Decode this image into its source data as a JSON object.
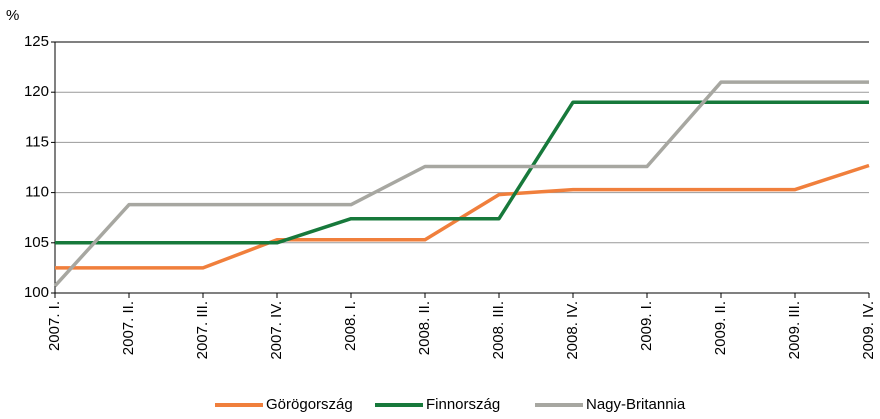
{
  "chart_data": {
    "type": "line",
    "y_label": "%",
    "categories": [
      "2007. I.",
      "2007. II.",
      "2007. III.",
      "2007. IV.",
      "2008. I.",
      "2008. II.",
      "2008. III.",
      "2008. IV.",
      "2009. I.",
      "2009. II.",
      "2009. III.",
      "2009. IV."
    ],
    "series": [
      {
        "name": "Görögország",
        "color": "#f07f3c",
        "values": [
          102.5,
          102.5,
          102.5,
          105.3,
          105.3,
          105.3,
          109.8,
          110.3,
          110.3,
          110.3,
          110.3,
          112.7
        ]
      },
      {
        "name": "Finnország",
        "color": "#17793b",
        "values": [
          105,
          105,
          105,
          105,
          107.4,
          107.4,
          107.4,
          119,
          119,
          119,
          119,
          119
        ]
      },
      {
        "name": "Nagy-Britannia",
        "color": "#a7a7a1",
        "values": [
          100.7,
          108.8,
          108.8,
          108.8,
          108.8,
          112.6,
          112.6,
          112.6,
          112.6,
          121,
          121,
          121
        ]
      }
    ],
    "ylim": [
      100,
      125
    ],
    "yticks": [
      100,
      105,
      110,
      115,
      120,
      125
    ],
    "grid": true,
    "legend": "bottom"
  }
}
